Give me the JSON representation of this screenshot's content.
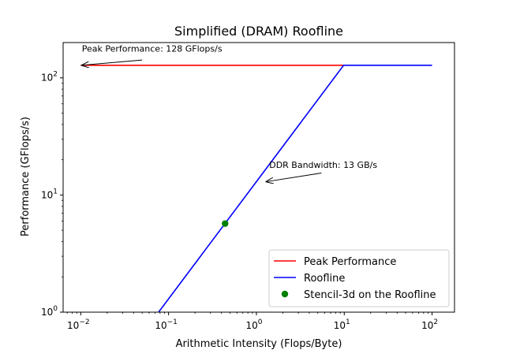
{
  "chart_data": {
    "type": "line",
    "title": "Simplified (DRAM) Roofline",
    "xlabel": "Arithmetic Intensity (Flops/Byte)",
    "ylabel": "Performance (GFlops/s)",
    "xscale": "log",
    "yscale": "log",
    "xlim": [
      0.0063,
      180
    ],
    "ylim": [
      1,
      200
    ],
    "x_ticks": [
      {
        "value": 0.01,
        "base": "10",
        "exp": "−2"
      },
      {
        "value": 0.1,
        "base": "10",
        "exp": "−1"
      },
      {
        "value": 1,
        "base": "10",
        "exp": "0"
      },
      {
        "value": 10,
        "base": "10",
        "exp": "1"
      },
      {
        "value": 100,
        "base": "10",
        "exp": "2"
      }
    ],
    "y_ticks": [
      {
        "value": 1,
        "base": "10",
        "exp": "0"
      },
      {
        "value": 10,
        "base": "10",
        "exp": "1"
      },
      {
        "value": 100,
        "base": "10",
        "exp": "2"
      }
    ],
    "series": [
      {
        "name": "Peak Performance",
        "color": "#ff0000",
        "kind": "line",
        "points": [
          [
            0.01,
            128
          ],
          [
            10,
            128
          ]
        ]
      },
      {
        "name": "Roofline",
        "color": "#0000ff",
        "kind": "line",
        "points": [
          [
            0.0769,
            1
          ],
          [
            9.85,
            128
          ],
          [
            100,
            128
          ]
        ]
      },
      {
        "name": "Stencil-3d on the Roofline",
        "color": "#008000",
        "kind": "marker",
        "points": [
          [
            0.44,
            5.7
          ]
        ]
      }
    ],
    "annotations": [
      {
        "text": "Peak Performance: 128 GFlops/s",
        "text_at": [
          0.0103,
          168
        ],
        "arrow_from": [
          0.05,
          142
        ],
        "arrow_to": [
          0.0103,
          128
        ]
      },
      {
        "text": "DDR Bandwidth: 13 GB/s",
        "text_at": [
          1.4,
          17
        ],
        "arrow_from": [
          5.5,
          15.4
        ],
        "arrow_to": [
          1.3,
          13
        ]
      }
    ],
    "legend": "lower-right",
    "grid": false
  }
}
